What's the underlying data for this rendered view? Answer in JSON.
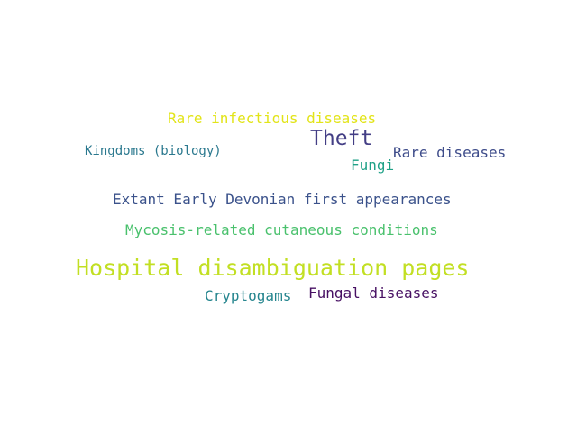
{
  "words": [
    {
      "id": "hospital-disambiguation-pages",
      "text": "Hospital disambiguation pages",
      "color": "#c2df23"
    },
    {
      "id": "theft",
      "text": "Theft",
      "color": "#433e85"
    },
    {
      "id": "extant-early-devonian",
      "text": "Extant Early Devonian first appearances",
      "color": "#3b528b"
    },
    {
      "id": "mycosis-related",
      "text": "Mycosis-related cutaneous conditions",
      "color": "#4ac16d"
    },
    {
      "id": "rare-infectious-diseases",
      "text": "Rare infectious diseases",
      "color": "#e2e418"
    },
    {
      "id": "rare-diseases",
      "text": "Rare diseases",
      "color": "#3e4c8a"
    },
    {
      "id": "cryptogams",
      "text": "Cryptogams",
      "color": "#25858e"
    },
    {
      "id": "fungal-diseases",
      "text": "Fungal diseases",
      "color": "#471063"
    },
    {
      "id": "fungi",
      "text": "Fungi",
      "color": "#1fa187"
    },
    {
      "id": "kingdoms-biology",
      "text": "Kingdoms (biology)",
      "color": "#2a788e"
    }
  ]
}
